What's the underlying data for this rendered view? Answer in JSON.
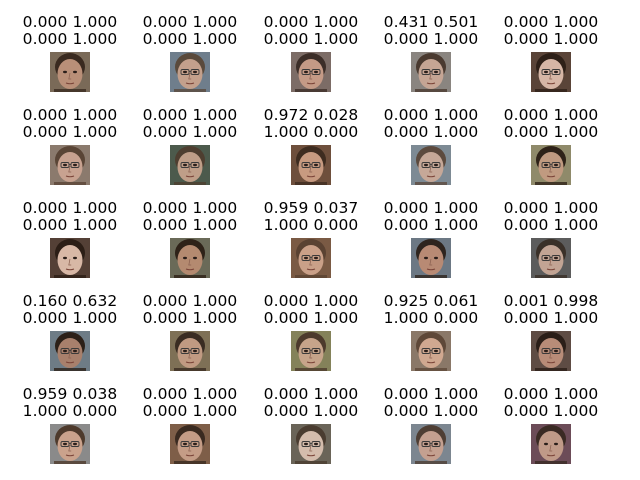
{
  "images": [
    {
      "line1": "0.000 1.000",
      "line2": "0.000 1.000",
      "colors": {
        "bg": "#7a6a58",
        "skin": "#b98f78",
        "hair": "#3a2a20",
        "glasses": false
      }
    },
    {
      "line1": "0.000 1.000",
      "line2": "0.000 1.000",
      "colors": {
        "bg": "#6f7e8c",
        "skin": "#c3a08c",
        "hair": "#5a4a3c",
        "glasses": true
      }
    },
    {
      "line1": "0.000 1.000",
      "line2": "0.000 1.000",
      "colors": {
        "bg": "#7c6c66",
        "skin": "#c49a86",
        "hair": "#3c2e28",
        "glasses": true
      }
    },
    {
      "line1": "0.431 0.501",
      "line2": "0.000 1.000",
      "colors": {
        "bg": "#8a8580",
        "skin": "#c5a594",
        "hair": "#4a3a30",
        "glasses": true
      }
    },
    {
      "line1": "0.000 1.000",
      "line2": "0.000 1.000",
      "colors": {
        "bg": "#5a4438",
        "skin": "#d6b6a6",
        "hair": "#2e2018",
        "glasses": true
      }
    },
    {
      "line1": "0.000 1.000",
      "line2": "0.000 1.000",
      "colors": {
        "bg": "#8b7a6d",
        "skin": "#c8a290",
        "hair": "#5a4536",
        "glasses": true
      }
    },
    {
      "line1": "0.000 1.000",
      "line2": "0.000 1.000",
      "colors": {
        "bg": "#4c5a4c",
        "skin": "#bf9e88",
        "hair": "#4e3e30",
        "glasses": true
      }
    },
    {
      "line1": "0.972 0.028",
      "line2": "1.000 0.000",
      "colors": {
        "bg": "#6e4f3c",
        "skin": "#c79a80",
        "hair": "#3e2c20",
        "glasses": true
      }
    },
    {
      "line1": "0.000 1.000",
      "line2": "0.000 1.000",
      "colors": {
        "bg": "#7d8a94",
        "skin": "#c6a898",
        "hair": "#5c4a3e",
        "glasses": true
      }
    },
    {
      "line1": "0.000 1.000",
      "line2": "0.000 1.000",
      "colors": {
        "bg": "#8f8a6a",
        "skin": "#c09a80",
        "hair": "#2e2218",
        "glasses": true
      }
    },
    {
      "line1": "0.000 1.000",
      "line2": "0.000 1.000",
      "colors": {
        "bg": "#544036",
        "skin": "#d8b8a6",
        "hair": "#2c1e16",
        "glasses": false
      }
    },
    {
      "line1": "0.000 1.000",
      "line2": "0.000 1.000",
      "colors": {
        "bg": "#6a6a58",
        "skin": "#b48a70",
        "hair": "#2e2218",
        "glasses": false
      }
    },
    {
      "line1": "0.959 0.037",
      "line2": "1.000 0.000",
      "colors": {
        "bg": "#7a5a44",
        "skin": "#caa088",
        "hair": "#5a4232",
        "glasses": true
      }
    },
    {
      "line1": "0.000 1.000",
      "line2": "0.000 1.000",
      "colors": {
        "bg": "#6c7884",
        "skin": "#b88a74",
        "hair": "#2e241e",
        "glasses": false
      }
    },
    {
      "line1": "0.000 1.000",
      "line2": "0.000 1.000",
      "colors": {
        "bg": "#5c5c5c",
        "skin": "#c2a494",
        "hair": "#3a3028",
        "glasses": true
      }
    },
    {
      "line1": "0.160 0.632",
      "line2": "0.000 1.000",
      "colors": {
        "bg": "#6e7c86",
        "skin": "#a8806c",
        "hair": "#2c2018",
        "glasses": true
      }
    },
    {
      "line1": "0.000 1.000",
      "line2": "0.000 1.000",
      "colors": {
        "bg": "#7e7056",
        "skin": "#c09a82",
        "hair": "#3a2c22",
        "glasses": true
      }
    },
    {
      "line1": "0.000 1.000",
      "line2": "0.000 1.000",
      "colors": {
        "bg": "#84825a",
        "skin": "#c6a48a",
        "hair": "#4c3a2c",
        "glasses": true
      }
    },
    {
      "line1": "0.925 0.061",
      "line2": "1.000 0.000",
      "colors": {
        "bg": "#8a7868",
        "skin": "#d0a890",
        "hair": "#5e4838",
        "glasses": true
      }
    },
    {
      "line1": "0.001 0.998",
      "line2": "0.000 1.000",
      "colors": {
        "bg": "#5e4c44",
        "skin": "#b88c78",
        "hair": "#2a1e18",
        "glasses": true
      }
    },
    {
      "line1": "0.959 0.038",
      "line2": "1.000 0.000",
      "colors": {
        "bg": "#8a8a8a",
        "skin": "#caa28c",
        "hair": "#4e3a2c",
        "glasses": true
      }
    },
    {
      "line1": "0.000 1.000",
      "line2": "0.000 1.000",
      "colors": {
        "bg": "#7e5e48",
        "skin": "#c49c86",
        "hair": "#3a2a20",
        "glasses": true
      }
    },
    {
      "line1": "0.000 1.000",
      "line2": "0.000 1.000",
      "colors": {
        "bg": "#6a6458",
        "skin": "#d4bcac",
        "hair": "#4a3c30",
        "glasses": true
      }
    },
    {
      "line1": "0.000 1.000",
      "line2": "0.000 1.000",
      "colors": {
        "bg": "#7c8690",
        "skin": "#c4a090",
        "hair": "#4e3e34",
        "glasses": true
      }
    },
    {
      "line1": "0.000 1.000",
      "line2": "0.000 1.000",
      "colors": {
        "bg": "#6c4c58",
        "skin": "#c09a88",
        "hair": "#3a2a24",
        "glasses": false
      }
    }
  ]
}
